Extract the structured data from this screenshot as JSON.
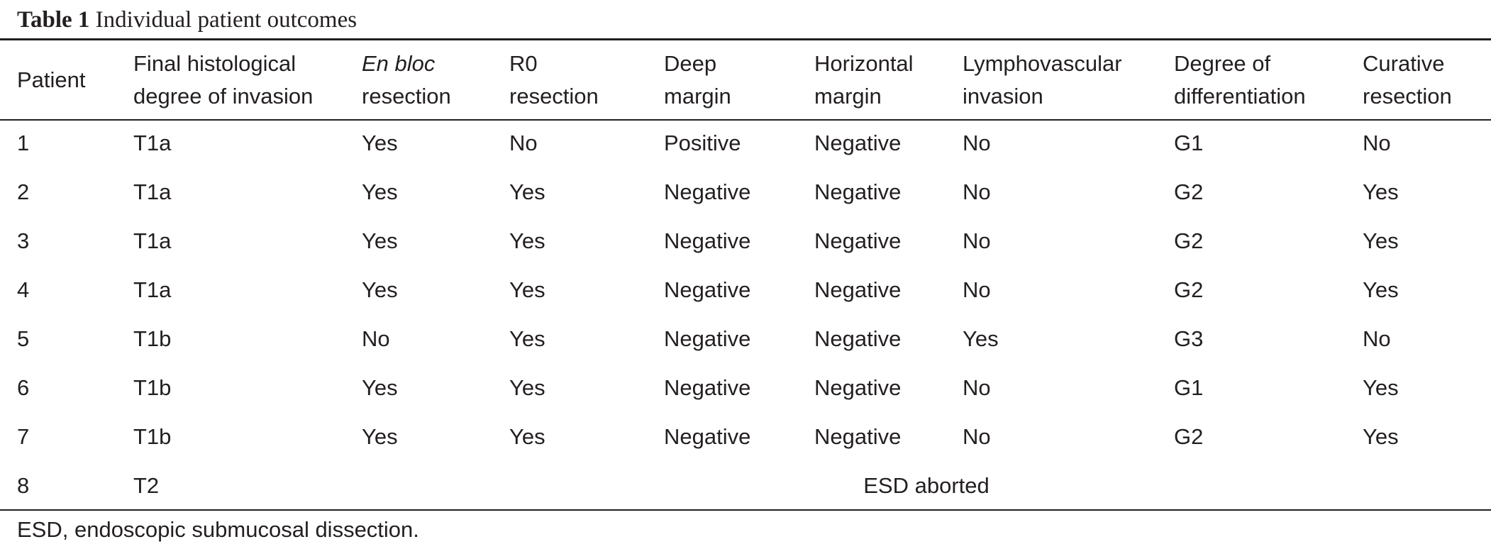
{
  "caption": {
    "label": "Table 1",
    "title": "Individual patient outcomes"
  },
  "headers": [
    {
      "line1": "Patient",
      "line2": ""
    },
    {
      "line1": "Final histological",
      "line2": "degree of invasion"
    },
    {
      "line1_italic": "En bloc",
      "line2": "resection"
    },
    {
      "line1": "R0",
      "line2": "resection"
    },
    {
      "line1": "Deep",
      "line2": "margin"
    },
    {
      "line1": "Horizontal",
      "line2": "margin"
    },
    {
      "line1": "Lymphovascular",
      "line2": "invasion"
    },
    {
      "line1": "Degree of",
      "line2": "differentiation"
    },
    {
      "line1": "Curative",
      "line2": "resection"
    }
  ],
  "rows": [
    [
      "1",
      "T1a",
      "Yes",
      "No",
      "Positive",
      "Negative",
      "No",
      "G1",
      "No"
    ],
    [
      "2",
      "T1a",
      "Yes",
      "Yes",
      "Negative",
      "Negative",
      "No",
      "G2",
      "Yes"
    ],
    [
      "3",
      "T1a",
      "Yes",
      "Yes",
      "Negative",
      "Negative",
      "No",
      "G2",
      "Yes"
    ],
    [
      "4",
      "T1a",
      "Yes",
      "Yes",
      "Negative",
      "Negative",
      "No",
      "G2",
      "Yes"
    ],
    [
      "5",
      "T1b",
      "No",
      "Yes",
      "Negative",
      "Negative",
      "Yes",
      "G3",
      "No"
    ],
    [
      "6",
      "T1b",
      "Yes",
      "Yes",
      "Negative",
      "Negative",
      "No",
      "G1",
      "Yes"
    ],
    [
      "7",
      "T1b",
      "Yes",
      "Yes",
      "Negative",
      "Negative",
      "No",
      "G2",
      "Yes"
    ]
  ],
  "last_row": {
    "patient": "8",
    "invasion": "T2",
    "note": "ESD aborted"
  },
  "footnote": "ESD, endoscopic submucosal dissection."
}
